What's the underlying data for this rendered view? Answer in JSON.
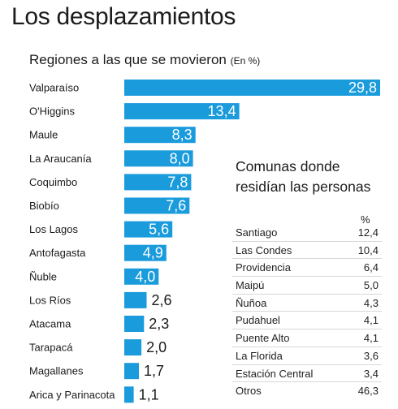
{
  "header": {
    "title": "Los desplazamientos",
    "subtitle": "Regiones a las que se movieron",
    "subtitle_unit": "(En %)"
  },
  "colors": {
    "bar": "#1a9bdc",
    "bar_label_inside": "#ffffff",
    "bar_label_outside": "#1b1b1b"
  },
  "chart_data": {
    "type": "bar",
    "orientation": "horizontal",
    "title": "Regiones a las que se movieron",
    "unit": "(En %)",
    "categories": [
      "Valparaíso",
      "O'Higgins",
      "Maule",
      "La Araucanía",
      "Coquimbo",
      "Biobío",
      "Los Lagos",
      "Antofagasta",
      "Ñuble",
      "Los Ríos",
      "Atacama",
      "Tarapacá",
      "Magallanes",
      "Arica y Parinacota"
    ],
    "values": [
      29.8,
      13.4,
      8.3,
      8.0,
      7.8,
      7.6,
      5.6,
      4.9,
      4.0,
      2.6,
      2.3,
      2.0,
      1.7,
      1.1
    ],
    "value_labels": [
      "29,8",
      "13,4",
      "8,3",
      "8,0",
      "7,8",
      "7,6",
      "5,6",
      "4,9",
      "4,0",
      "2,6",
      "2,3",
      "2,0",
      "1,7",
      "1,1"
    ],
    "xlim": [
      0,
      29.8
    ],
    "grid": false,
    "legend": "none"
  },
  "inset": {
    "title_line1": "Comunas donde",
    "title_line2": "residían las personas",
    "column_header": "%",
    "rows": [
      {
        "name": "Santiago",
        "value": "12,4"
      },
      {
        "name": "Las Condes",
        "value": "10,4"
      },
      {
        "name": "Providencia",
        "value": "6,4"
      },
      {
        "name": "Maipú",
        "value": "5,0"
      },
      {
        "name": "Ñuñoa",
        "value": "4,3"
      },
      {
        "name": "Pudahuel",
        "value": "4,1"
      },
      {
        "name": "Puente Alto",
        "value": "4,1"
      },
      {
        "name": "La Florida",
        "value": "3,6"
      },
      {
        "name": "Estación Central",
        "value": "3,4"
      },
      {
        "name": "Otros",
        "value": "46,3"
      }
    ]
  }
}
